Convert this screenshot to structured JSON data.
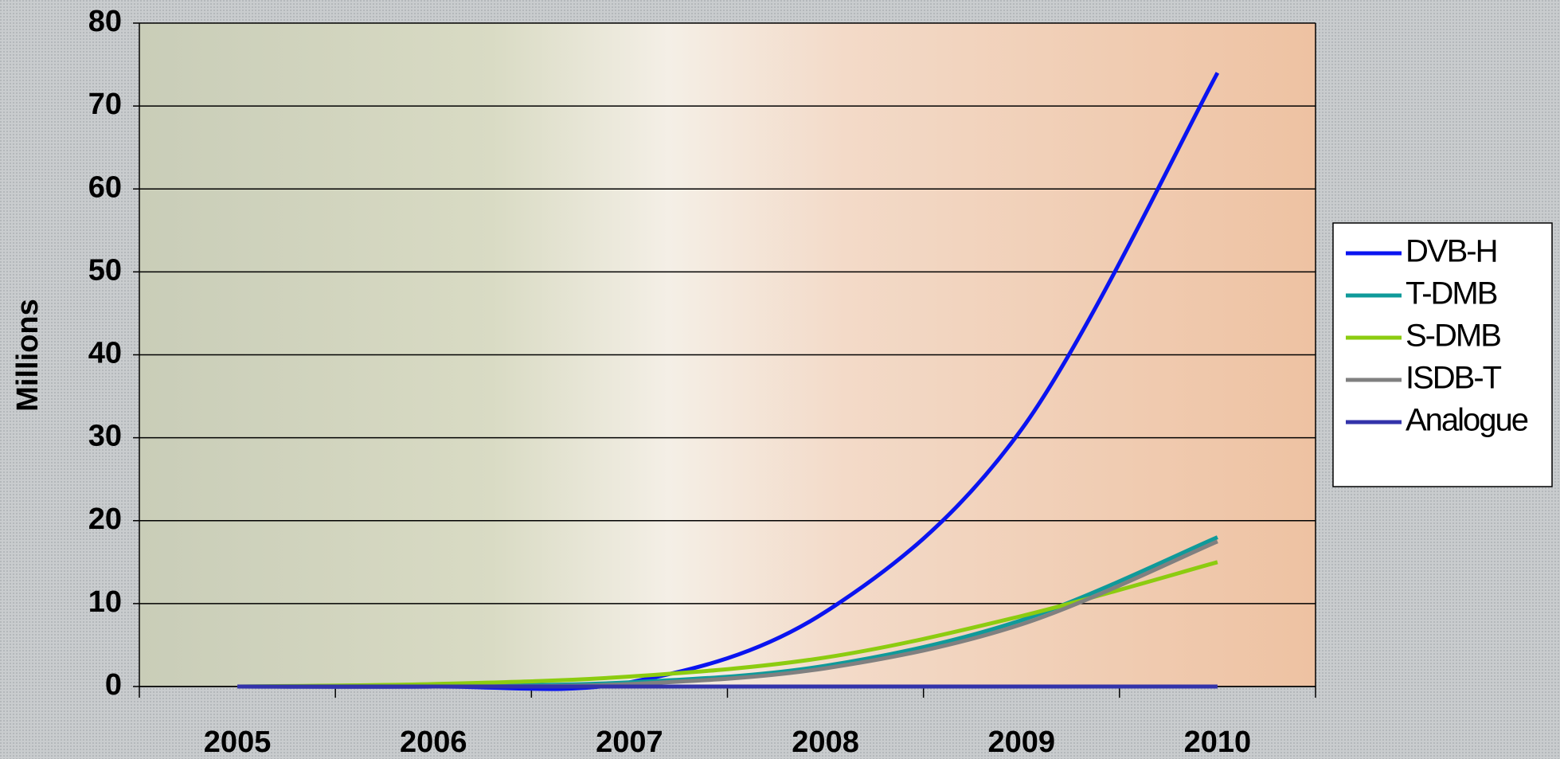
{
  "chart_data": {
    "type": "line",
    "y_label": "Millions",
    "categories": [
      "2005",
      "2006",
      "2007",
      "2008",
      "2009",
      "2010"
    ],
    "series": [
      {
        "name": "DVB-H",
        "color": "#0a14f0",
        "values": [
          0,
          0,
          0.5,
          9,
          31,
          74
        ]
      },
      {
        "name": "T-DMB",
        "color": "#0f9a9a",
        "values": [
          0,
          0.1,
          0.5,
          2.5,
          8,
          18
        ]
      },
      {
        "name": "S-DMB",
        "color": "#8ccc10",
        "values": [
          0,
          0.3,
          1.2,
          3.5,
          8.5,
          15
        ]
      },
      {
        "name": "ISDB-T",
        "color": "#808080",
        "values": [
          0,
          0,
          0.3,
          2.2,
          7.5,
          17.5
        ]
      },
      {
        "name": "Analogue",
        "color": "#3333aa",
        "values": [
          0,
          0,
          0,
          0,
          0,
          0
        ]
      }
    ],
    "ylim": [
      0,
      80
    ],
    "yticks": [
      0,
      10,
      20,
      30,
      40,
      50,
      60,
      70,
      80
    ],
    "grid": true,
    "legend": "right"
  }
}
